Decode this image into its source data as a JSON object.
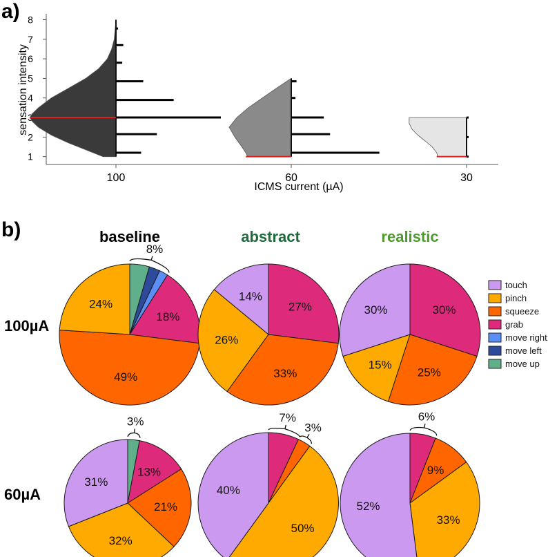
{
  "panel_a": {
    "label": "a)",
    "chart_data": {
      "type": "violin-histogram",
      "ylabel": "sensation intensity",
      "xlabel": "ICMS current (µA)",
      "yticks": [
        1,
        2,
        3,
        4,
        5,
        6,
        7,
        8
      ],
      "ylim": [
        0.6,
        8.3
      ],
      "groups": [
        {
          "category": "100",
          "color": "#3a3a3a",
          "median": 3,
          "violin_range": [
            1,
            8
          ],
          "violin_profile": [
            [
              1,
              0.15
            ],
            [
              1.3,
              0.32
            ],
            [
              1.7,
              0.55
            ],
            [
              2.1,
              0.75
            ],
            [
              2.5,
              0.9
            ],
            [
              2.8,
              0.97
            ],
            [
              3,
              1.0
            ],
            [
              3.2,
              0.97
            ],
            [
              3.5,
              0.9
            ],
            [
              4,
              0.75
            ],
            [
              4.5,
              0.55
            ],
            [
              5,
              0.35
            ],
            [
              5.5,
              0.2
            ],
            [
              6,
              0.1
            ],
            [
              6.5,
              0.05
            ],
            [
              7,
              0.02
            ],
            [
              7.5,
              0.01
            ],
            [
              8,
              0
            ]
          ],
          "violin_max_width": 0.78,
          "histogram": [
            [
              1.2,
              0.24
            ],
            [
              2.15,
              0.39
            ],
            [
              3,
              1.0
            ],
            [
              3.9,
              0.55
            ],
            [
              4.85,
              0.26
            ],
            [
              5.8,
              0.06
            ],
            [
              6.7,
              0.07
            ],
            [
              7.55,
              0.02
            ]
          ]
        },
        {
          "category": "60",
          "color": "#8a8a8a",
          "median": 1,
          "violin_range": [
            1,
            5
          ],
          "violin_profile": [
            [
              1,
              0.68
            ],
            [
              1.2,
              0.71
            ],
            [
              1.5,
              0.77
            ],
            [
              2,
              0.88
            ],
            [
              2.5,
              0.97
            ],
            [
              3,
              0.85
            ],
            [
              3.5,
              0.67
            ],
            [
              4,
              0.45
            ],
            [
              4.5,
              0.23
            ],
            [
              5,
              0
            ]
          ],
          "violin_max_width": 0.58,
          "histogram": [
            [
              1.2,
              0.84
            ],
            [
              2.15,
              0.37
            ],
            [
              3,
              0.31
            ],
            [
              4,
              0.04
            ],
            [
              4.85,
              0.05
            ]
          ]
        },
        {
          "category": "30",
          "color": "#e5e5e5",
          "median": 1,
          "violin_range": [
            1,
            3
          ],
          "violin_profile": [
            [
              1,
              0.5
            ],
            [
              1.2,
              0.52
            ],
            [
              1.5,
              0.6
            ],
            [
              1.8,
              0.72
            ],
            [
              2.1,
              0.85
            ],
            [
              2.4,
              0.95
            ],
            [
              2.7,
              1.0
            ],
            [
              3,
              1.0
            ]
          ],
          "violin_max_width": 0.52,
          "histogram": [
            [
              1,
              0.02
            ],
            [
              2,
              0.01
            ],
            [
              3,
              0.01
            ]
          ]
        }
      ]
    }
  },
  "panel_b": {
    "label": "b)",
    "column_titles": [
      {
        "text": "baseline",
        "color": "#111111"
      },
      {
        "text": "abstract",
        "color": "#1d6a3a"
      },
      {
        "text": "realistic",
        "color": "#4e9a2e"
      }
    ],
    "row_labels": [
      "100µA",
      "60µA"
    ],
    "legend": [
      {
        "label": "touch",
        "color": "#cc99f0"
      },
      {
        "label": "pinch",
        "color": "#ffaa00"
      },
      {
        "label": "squeeze",
        "color": "#ff6600"
      },
      {
        "label": "grab",
        "color": "#dd2a7b"
      },
      {
        "label": "move right",
        "color": "#5b8ff5"
      },
      {
        "label": "move left",
        "color": "#2e4a9b"
      },
      {
        "label": "move up",
        "color": "#5faf8a"
      }
    ],
    "chart_data": [
      {
        "type": "pie",
        "title": "baseline 100µA",
        "slices": [
          {
            "cat": "move up",
            "value": 4.5
          },
          {
            "cat": "move left",
            "value": 2.5
          },
          {
            "cat": "move right",
            "value": 2
          },
          {
            "cat": "grab",
            "value": 18,
            "label": "18%"
          },
          {
            "cat": "squeeze",
            "value": 49,
            "label": "49%"
          },
          {
            "cat": "pinch",
            "value": 24,
            "label": "24%"
          }
        ],
        "brace_label": "8%"
      },
      {
        "type": "pie",
        "title": "abstract 100µA",
        "slices": [
          {
            "cat": "grab",
            "value": 27,
            "label": "27%"
          },
          {
            "cat": "squeeze",
            "value": 33,
            "label": "33%"
          },
          {
            "cat": "pinch",
            "value": 26,
            "label": "26%"
          },
          {
            "cat": "touch",
            "value": 14,
            "label": "14%"
          }
        ]
      },
      {
        "type": "pie",
        "title": "realistic 100µA",
        "slices": [
          {
            "cat": "grab",
            "value": 30,
            "label": "30%"
          },
          {
            "cat": "squeeze",
            "value": 25,
            "label": "25%"
          },
          {
            "cat": "pinch",
            "value": 15,
            "label": "15%"
          },
          {
            "cat": "touch",
            "value": 30,
            "label": "30%"
          }
        ]
      },
      {
        "type": "pie",
        "title": "baseline 60µA",
        "slices": [
          {
            "cat": "move up",
            "value": 3
          },
          {
            "cat": "grab",
            "value": 13,
            "label": "13%"
          },
          {
            "cat": "squeeze",
            "value": 21,
            "label": "21%"
          },
          {
            "cat": "pinch",
            "value": 32,
            "label": "32%"
          },
          {
            "cat": "touch",
            "value": 31,
            "label": "31%"
          }
        ],
        "brace_label": "3%"
      },
      {
        "type": "pie",
        "title": "abstract 60µA",
        "slices": [
          {
            "cat": "grab",
            "value": 7
          },
          {
            "cat": "squeeze",
            "value": 3
          },
          {
            "cat": "pinch",
            "value": 50,
            "label": "50%"
          },
          {
            "cat": "touch",
            "value": 40,
            "label": "40%"
          }
        ],
        "brace_labels": [
          "7%",
          "3%"
        ]
      },
      {
        "type": "pie",
        "title": "realistic 60µA",
        "slices": [
          {
            "cat": "grab",
            "value": 6
          },
          {
            "cat": "squeeze",
            "value": 9,
            "label": "9%"
          },
          {
            "cat": "pinch",
            "value": 33,
            "label": "33%"
          },
          {
            "cat": "touch",
            "value": 52,
            "label": "52%"
          }
        ],
        "brace_label": "6%"
      }
    ]
  }
}
